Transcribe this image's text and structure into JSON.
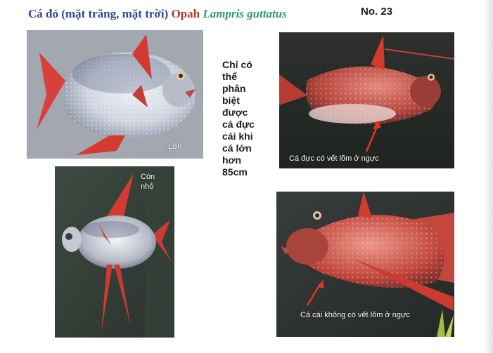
{
  "header": {
    "title_vn": "Cá đỏ (mặt trăng, mặt trời)",
    "title_en": "Opah",
    "title_sci": "Lampris guttatus",
    "number": "No. 23"
  },
  "photos": {
    "large_fish_caption": "Lớn",
    "small_fish_caption_line1": "Còn",
    "small_fish_caption_line2": "nhỏ",
    "male_caption": "Cá đực có vết lõm ở ngực",
    "female_caption": "Cá cái không có vết lõm ở ngực"
  },
  "note": {
    "lines": [
      "Chỉ có",
      "thể",
      "phân",
      "biệt",
      "được",
      "cá đực",
      "cái khi",
      "cá lớn",
      "hơn",
      "85cm"
    ]
  },
  "colors": {
    "title_vn": "#2d4a8a",
    "title_en": "#b23a2e",
    "title_sci": "#2f9a73",
    "fin_red": "#d43a2f",
    "arrow_red": "#e0352b"
  }
}
